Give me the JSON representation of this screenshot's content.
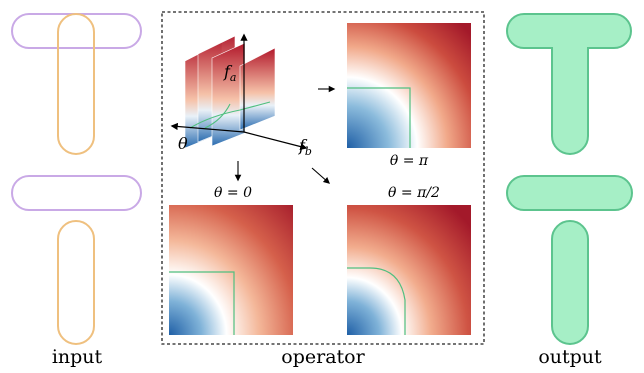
{
  "captions": {
    "input": "input",
    "operator": "operator",
    "output": "output"
  },
  "axes": {
    "theta": "θ",
    "fa": "f",
    "fa_sub": "a",
    "fb": "f",
    "fb_sub": "b"
  },
  "panels": {
    "theta_pi": "θ = π",
    "theta_0": "θ = 0",
    "theta_pi2": "θ = π/2"
  },
  "colors": {
    "input_a": "#c9a9e6",
    "input_b": "#efc07f",
    "output_fill": "#a6efc6",
    "output_stroke": "#5cc48e",
    "contour": "#4fbf7f",
    "map_low": "#2166ac",
    "map_mid": "#ffffff",
    "map_high": "#b2182b"
  }
}
